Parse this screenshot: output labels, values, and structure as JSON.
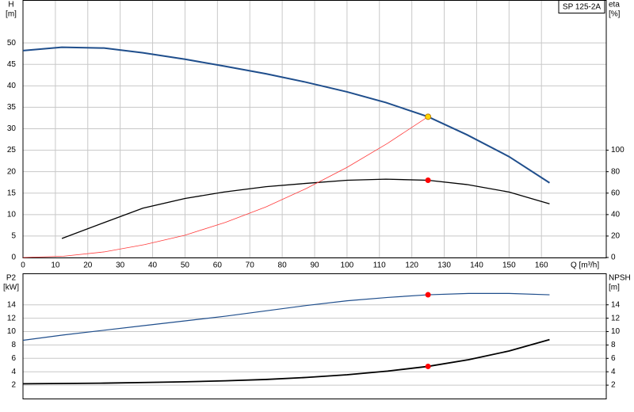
{
  "chart_data": [
    {
      "type": "line",
      "title": "SP 125-2A",
      "x_label": "Q [m³/h]",
      "y_label": "H",
      "y_unit": "[m]",
      "y2_label": "eta",
      "y2_unit": "[%]",
      "xlim": [
        0,
        180
      ],
      "xticks": [
        0,
        10,
        20,
        30,
        40,
        50,
        60,
        70,
        80,
        90,
        100,
        110,
        120,
        130,
        140,
        150,
        160
      ],
      "ylim": [
        0,
        60
      ],
      "yticks": [
        0,
        5,
        10,
        15,
        20,
        25,
        30,
        35,
        40,
        45,
        50
      ],
      "y2lim": [
        0,
        240
      ],
      "y2ticks": [
        0,
        20,
        40,
        60,
        80,
        100
      ],
      "grid": true,
      "series": [
        {
          "color": "#1f4e8c",
          "width": 2,
          "x": [
            0,
            12,
            25,
            37,
            50,
            62,
            75,
            87,
            100,
            112,
            125,
            137,
            150,
            162.5
          ],
          "values": [
            48.2,
            49,
            48.8,
            47.7,
            46.2,
            44.6,
            42.8,
            40.9,
            38.6,
            36.1,
            32.8,
            28.6,
            23.5,
            17.4
          ]
        },
        {
          "color": "#000000",
          "width": 1.3,
          "axis": "y2",
          "x": [
            12,
            25,
            37,
            50,
            62,
            75,
            87,
            100,
            112,
            125,
            137,
            150,
            162.5
          ],
          "values": [
            17.7,
            32.5,
            46,
            55,
            61,
            66,
            69,
            72,
            73,
            72,
            68,
            61,
            50
          ]
        },
        {
          "color": "#ff3b3b",
          "width": 0.8,
          "x": [
            0,
            12.5,
            25,
            37.5,
            50,
            62.5,
            75,
            87.5,
            100,
            112.5,
            125
          ],
          "values": [
            0,
            0.3,
            1.3,
            3,
            5.2,
            8.2,
            11.8,
            16.1,
            21,
            26.6,
            32.8
          ]
        },
        {
          "color": "#ffd700",
          "marker": true,
          "x": [
            125
          ],
          "values": [
            32.8
          ]
        },
        {
          "color": "#ff0000",
          "marker": true,
          "axis": "y2",
          "x": [
            125
          ],
          "values": [
            72
          ]
        }
      ]
    },
    {
      "type": "line",
      "y_label": "P2",
      "y_unit": "[kW]",
      "y2_label": "NPSH",
      "y2_unit": "[m]",
      "xlim": [
        0,
        180
      ],
      "ylim": [
        0,
        18.7
      ],
      "yticks": [
        2,
        4,
        6,
        8,
        10,
        12,
        14
      ],
      "y2lim": [
        0,
        18.7
      ],
      "y2ticks": [
        2,
        4,
        6,
        8,
        10,
        12,
        14
      ],
      "grid": true,
      "series": [
        {
          "color": "#1f4e8c",
          "width": 1.2,
          "x": [
            0,
            12.5,
            25,
            37.5,
            50,
            62.5,
            75,
            87.5,
            100,
            112.5,
            125,
            137.5,
            150,
            162.5
          ],
          "values": [
            8.7,
            9.5,
            10.2,
            10.9,
            11.6,
            12.3,
            13.1,
            13.9,
            14.6,
            15.1,
            15.5,
            15.7,
            15.7,
            15.5
          ]
        },
        {
          "color": "#000000",
          "width": 1.8,
          "axis": "y2",
          "x": [
            0,
            12.5,
            25,
            37.5,
            50,
            62.5,
            75,
            87.5,
            100,
            112.5,
            125,
            137.5,
            150,
            162.5
          ],
          "values": [
            2.2,
            2.25,
            2.3,
            2.4,
            2.5,
            2.65,
            2.85,
            3.15,
            3.55,
            4.1,
            4.8,
            5.8,
            7.1,
            8.8
          ]
        },
        {
          "color": "#ff0000",
          "marker": true,
          "x": [
            125
          ],
          "values": [
            15.5
          ]
        },
        {
          "color": "#ff0000",
          "marker": true,
          "axis": "y2",
          "x": [
            125
          ],
          "values": [
            4.8
          ]
        }
      ]
    }
  ]
}
